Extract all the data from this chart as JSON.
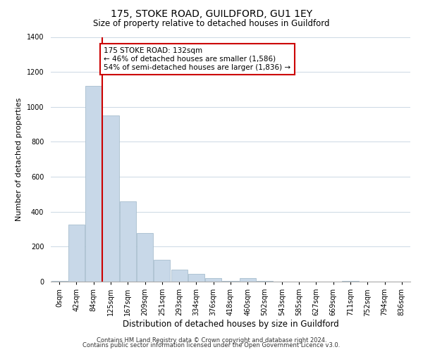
{
  "title": "175, STOKE ROAD, GUILDFORD, GU1 1EY",
  "subtitle": "Size of property relative to detached houses in Guildford",
  "xlabel": "Distribution of detached houses by size in Guildford",
  "ylabel": "Number of detached properties",
  "bar_labels": [
    "0sqm",
    "42sqm",
    "84sqm",
    "125sqm",
    "167sqm",
    "209sqm",
    "251sqm",
    "293sqm",
    "334sqm",
    "376sqm",
    "418sqm",
    "460sqm",
    "502sqm",
    "543sqm",
    "585sqm",
    "627sqm",
    "669sqm",
    "711sqm",
    "752sqm",
    "794sqm",
    "836sqm"
  ],
  "bar_values": [
    5,
    325,
    1120,
    950,
    460,
    280,
    125,
    70,
    45,
    20,
    5,
    20,
    5,
    0,
    0,
    0,
    0,
    5,
    0,
    0,
    0
  ],
  "bar_color": "#c8d8e8",
  "bar_edge_color": "#a8bece",
  "vline_color": "#cc0000",
  "vline_pos": 2.5,
  "ylim": [
    0,
    1400
  ],
  "yticks": [
    0,
    200,
    400,
    600,
    800,
    1000,
    1200,
    1400
  ],
  "annotation_title": "175 STOKE ROAD: 132sqm",
  "annotation_line1": "← 46% of detached houses are smaller (1,586)",
  "annotation_line2": "54% of semi-detached houses are larger (1,836) →",
  "annotation_box_color": "#ffffff",
  "annotation_box_edge": "#cc0000",
  "footer_line1": "Contains HM Land Registry data © Crown copyright and database right 2024.",
  "footer_line2": "Contains public sector information licensed under the Open Government Licence v3.0.",
  "background_color": "#ffffff",
  "grid_color": "#ccd8e4",
  "title_fontsize": 10,
  "subtitle_fontsize": 8.5,
  "ylabel_fontsize": 8,
  "xlabel_fontsize": 8.5,
  "tick_fontsize": 7,
  "footer_fontsize": 6,
  "ann_fontsize": 7.5
}
